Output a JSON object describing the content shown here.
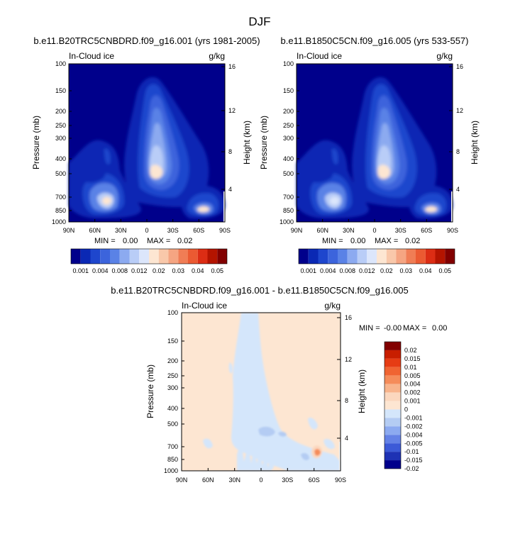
{
  "figure": {
    "title": "DJF"
  },
  "chart_data": [
    {
      "type": "heatmap",
      "panel_id": "top-left",
      "title": "b.e11.B20TRC5CNBDRD.f09_g16.001 (yrs 1981-2005)",
      "variable": "In-Cloud ice",
      "units": "g/kg",
      "xlabel": "",
      "ylabel": "Pressure (mb)",
      "ylabel_right": "Height (km)",
      "x_ticks": [
        "90N",
        "60N",
        "30N",
        "0",
        "30S",
        "60S",
        "90S"
      ],
      "y_ticks": [
        "100",
        "150",
        "200",
        "250",
        "300",
        "400",
        "500",
        "700",
        "850",
        "1000"
      ],
      "y_ticks_right": [
        "16",
        "12",
        "8",
        "4"
      ],
      "min_label": "MIN =",
      "min_value": "0.00",
      "max_label": "MAX =",
      "max_value": "0.02",
      "colorbar_labels": [
        "0.001",
        "0.004",
        "0.008",
        "0.012",
        "0.02",
        "0.03",
        "0.04",
        "0.05"
      ]
    },
    {
      "type": "heatmap",
      "panel_id": "top-right",
      "title": "b.e11.B1850C5CN.f09_g16.005 (yrs 533-557)",
      "variable": "In-Cloud ice",
      "units": "g/kg",
      "xlabel": "",
      "ylabel": "Pressure (mb)",
      "ylabel_right": "Height (km)",
      "x_ticks": [
        "90N",
        "60N",
        "30N",
        "0",
        "30S",
        "60S",
        "90S"
      ],
      "y_ticks": [
        "100",
        "150",
        "200",
        "250",
        "300",
        "400",
        "500",
        "700",
        "850",
        "1000"
      ],
      "y_ticks_right": [
        "16",
        "12",
        "8",
        "4"
      ],
      "min_label": "MIN =",
      "min_value": "0.00",
      "max_label": "MAX =",
      "max_value": "0.02",
      "colorbar_labels": [
        "0.001",
        "0.004",
        "0.008",
        "0.012",
        "0.02",
        "0.03",
        "0.04",
        "0.05"
      ]
    },
    {
      "type": "heatmap",
      "panel_id": "bottom-diff",
      "title": "b.e11.B20TRC5CNBDRD.f09_g16.001 - b.e11.B1850C5CN.f09_g16.005",
      "variable": "In-Cloud ice",
      "units": "g/kg",
      "xlabel": "",
      "ylabel": "Pressure (mb)",
      "ylabel_right": "Height (km)",
      "x_ticks": [
        "90N",
        "60N",
        "30N",
        "0",
        "30S",
        "60S",
        "90S"
      ],
      "y_ticks": [
        "100",
        "150",
        "200",
        "250",
        "300",
        "400",
        "500",
        "700",
        "850",
        "1000"
      ],
      "y_ticks_right": [
        "16",
        "12",
        "8",
        "4"
      ],
      "min_label": "MIN =",
      "min_value": "-0.00",
      "max_label": "MAX =",
      "max_value": "0.00",
      "colorbar_labels": [
        "0.02",
        "0.015",
        "0.01",
        "0.005",
        "0.004",
        "0.002",
        "0.001",
        "0",
        "-0.001",
        "-0.002",
        "-0.004",
        "-0.005",
        "-0.01",
        "-0.015",
        "-0.02"
      ]
    }
  ],
  "colors": {
    "seq": [
      "#00008b",
      "#0a28b4",
      "#1e46cd",
      "#3c64dc",
      "#5a82e6",
      "#8caaf0",
      "#b9cdf7",
      "#dce6fb",
      "#fde6d2",
      "#f9c8aa",
      "#f5a582",
      "#f07d55",
      "#eb5a32",
      "#dc2d14",
      "#b41400",
      "#820000"
    ],
    "diff": [
      "#820000",
      "#c81e00",
      "#e63c14",
      "#f06432",
      "#f58c5a",
      "#f8b48c",
      "#fbd7be",
      "#fde6d2",
      "#d4e6fb",
      "#b4ccf3",
      "#8caaf0",
      "#6482e6",
      "#3c5ad7",
      "#1e32b4",
      "#00008b"
    ]
  }
}
